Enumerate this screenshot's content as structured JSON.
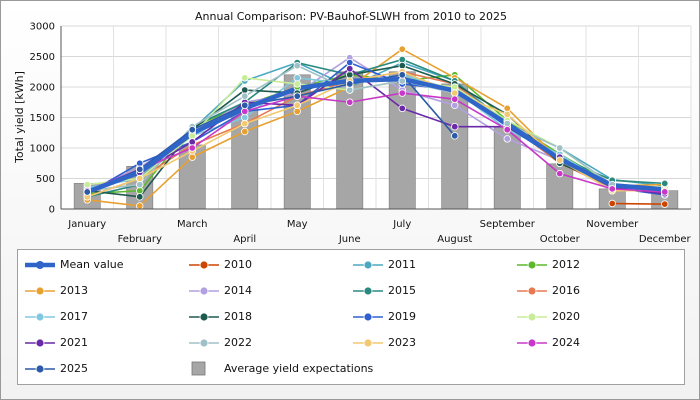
{
  "chart_data": {
    "type": "line",
    "title": "Annual Comparison: PV-Bauhof-SLWH from 2010 to 2025",
    "ylabel": "Total yield [kWh]",
    "xlabel": "",
    "ylim": [
      0,
      3000
    ],
    "yticks": [
      0,
      500,
      1000,
      1500,
      2000,
      2500,
      3000
    ],
    "grid": true,
    "legend_position": "bottom",
    "categories": [
      "January",
      "February",
      "March",
      "April",
      "May",
      "June",
      "July",
      "August",
      "September",
      "October",
      "November",
      "December"
    ],
    "bars": {
      "name": "Average yield expectations",
      "color": "#a6a6a6",
      "values": [
        420,
        700,
        1050,
        1640,
        2200,
        2250,
        2250,
        2050,
        1350,
        740,
        330,
        300
      ]
    },
    "series": [
      {
        "name": "Mean value",
        "color": "#2f64c8",
        "mean": true,
        "values": [
          280,
          600,
          1240,
          1650,
          1980,
          2100,
          2130,
          1940,
          1400,
          820,
          390,
          320
        ]
      },
      {
        "name": "2010",
        "color": "#cc4400",
        "values": [
          null,
          null,
          null,
          null,
          null,
          null,
          null,
          null,
          null,
          null,
          90,
          80
        ]
      },
      {
        "name": "2011",
        "color": "#4aa8c0",
        "values": [
          200,
          500,
          1300,
          2100,
          2400,
          2000,
          2400,
          2100,
          1400,
          1000,
          480,
          380
        ]
      },
      {
        "name": "2012",
        "color": "#5cb82c",
        "values": [
          250,
          300,
          1350,
          1700,
          2000,
          2200,
          2100,
          2200,
          1450,
          900,
          400,
          350
        ]
      },
      {
        "name": "2013",
        "color": "#e8a030",
        "values": [
          150,
          50,
          850,
          1270,
          1600,
          2000,
          2620,
          2150,
          1650,
          800,
          380,
          400
        ]
      },
      {
        "name": "2014",
        "color": "#b2a0e0",
        "values": [
          300,
          680,
          1250,
          1750,
          1900,
          2480,
          1950,
          1700,
          1150,
          800,
          300,
          300
        ]
      },
      {
        "name": "2015",
        "color": "#2a8a80",
        "values": [
          200,
          400,
          1350,
          1750,
          2400,
          2200,
          2450,
          2100,
          1350,
          850,
          470,
          420
        ]
      },
      {
        "name": "2016",
        "color": "#e87850",
        "values": [
          200,
          500,
          1050,
          1400,
          1850,
          2100,
          2250,
          2050,
          1400,
          750,
          350,
          300
        ]
      },
      {
        "name": "2017",
        "color": "#80c8e0",
        "values": [
          350,
          500,
          1200,
          1500,
          2150,
          2050,
          2200,
          1950,
          1300,
          900,
          350,
          300
        ]
      },
      {
        "name": "2018",
        "color": "#1e5a50",
        "values": [
          300,
          200,
          1300,
          1950,
          1900,
          2200,
          2350,
          2050,
          1550,
          750,
          380,
          300
        ]
      },
      {
        "name": "2019",
        "color": "#3060d0",
        "values": [
          250,
          750,
          1100,
          1600,
          1700,
          2400,
          2050,
          1950,
          1350,
          800,
          350,
          230
        ]
      },
      {
        "name": "2020",
        "color": "#c8ec98",
        "values": [
          400,
          500,
          1200,
          2150,
          2050,
          1950,
          2100,
          2000,
          1450,
          1000,
          380,
          300
        ]
      },
      {
        "name": "2021",
        "color": "#6a2aa8",
        "values": [
          300,
          600,
          1100,
          1750,
          1700,
          2300,
          1650,
          1350,
          1350,
          850,
          350,
          250
        ]
      },
      {
        "name": "2022",
        "color": "#a0c0c8",
        "values": [
          300,
          400,
          1350,
          1850,
          2350,
          1950,
          2100,
          1900,
          1400,
          1000,
          400,
          300
        ]
      },
      {
        "name": "2023",
        "color": "#f2c870",
        "values": [
          200,
          500,
          950,
          1400,
          1700,
          2100,
          2250,
          1900,
          1550,
          800,
          300,
          300
        ]
      },
      {
        "name": "2024",
        "color": "#c838c8",
        "values": [
          300,
          650,
          1000,
          1600,
          1850,
          1750,
          1900,
          1800,
          1300,
          580,
          330,
          280
        ]
      },
      {
        "name": "2025",
        "color": "#2c5aa8",
        "values": [
          280,
          650,
          1300,
          1700,
          1850,
          2050,
          2200,
          1200,
          null,
          null,
          null,
          null
        ]
      }
    ]
  }
}
